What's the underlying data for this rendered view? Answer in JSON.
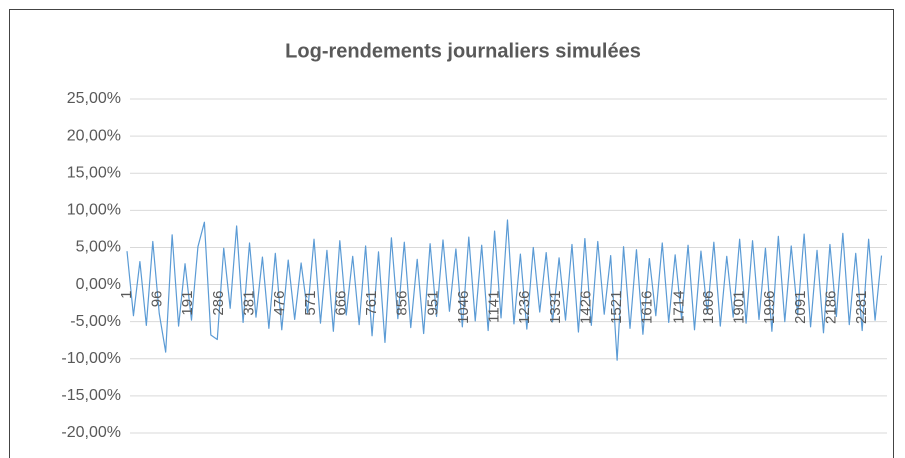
{
  "chart_data": {
    "type": "line",
    "title": "Log-rendements journaliers simulées",
    "xlim": [
      1,
      2358
    ],
    "xticks": [
      1,
      96,
      191,
      286,
      381,
      476,
      571,
      666,
      761,
      856,
      951,
      1046,
      1141,
      1236,
      1331,
      1426,
      1521,
      1616,
      1714,
      1806,
      1901,
      1996,
      2091,
      2186,
      2281
    ],
    "ylim": [
      -20,
      25
    ],
    "yticks": [
      {
        "value": 25,
        "label": "25,00%"
      },
      {
        "value": 20,
        "label": "20,00%"
      },
      {
        "value": 15,
        "label": "15,00%"
      },
      {
        "value": 10,
        "label": "10,00%"
      },
      {
        "value": 5,
        "label": "5,00%"
      },
      {
        "value": 0,
        "label": "0,00%"
      },
      {
        "value": -5,
        "label": "-5,00%"
      },
      {
        "value": -10,
        "label": "-10,00%"
      },
      {
        "value": -15,
        "label": "-15,00%"
      },
      {
        "value": -20,
        "label": "-20,00%"
      }
    ],
    "grid": true,
    "x": [
      1,
      21,
      41,
      61,
      81,
      101,
      121,
      141,
      161,
      181,
      201,
      221,
      241,
      261,
      281,
      301,
      321,
      341,
      361,
      381,
      401,
      421,
      441,
      461,
      481,
      501,
      521,
      541,
      561,
      581,
      601,
      621,
      641,
      661,
      681,
      701,
      721,
      741,
      761,
      781,
      801,
      821,
      841,
      861,
      881,
      901,
      921,
      941,
      961,
      981,
      1001,
      1021,
      1041,
      1061,
      1081,
      1101,
      1121,
      1141,
      1161,
      1181,
      1201,
      1221,
      1241,
      1261,
      1281,
      1301,
      1321,
      1341,
      1361,
      1381,
      1401,
      1421,
      1441,
      1461,
      1481,
      1501,
      1521,
      1541,
      1561,
      1581,
      1601,
      1621,
      1641,
      1661,
      1681,
      1701,
      1721,
      1741,
      1761,
      1781,
      1801,
      1821,
      1841,
      1861,
      1881,
      1901,
      1921,
      1941,
      1961,
      1981,
      2001,
      2021,
      2041,
      2061,
      2081,
      2101,
      2121,
      2141,
      2161,
      2181,
      2201,
      2221,
      2241,
      2261,
      2281,
      2301,
      2321,
      2341
    ],
    "series": [
      {
        "color": "#5b9bd5",
        "values": [
          4.5,
          -4.2,
          3.1,
          -5.5,
          5.8,
          -3.9,
          -9.1,
          6.7,
          -5.6,
          2.8,
          -4.8,
          5.1,
          8.4,
          -6.8,
          -7.4,
          4.9,
          -3.2,
          7.9,
          -5.1,
          5.6,
          -4.4,
          3.7,
          -5.9,
          4.2,
          -6.1,
          3.3,
          -4.7,
          2.9,
          -3.8,
          6.1,
          -5.2,
          4.6,
          -6.3,
          5.9,
          -4.1,
          3.8,
          -5.4,
          5.2,
          -6.9,
          4.4,
          -7.8,
          6.3,
          -4.6,
          5.7,
          -5.8,
          3.4,
          -6.6,
          5.5,
          -4.3,
          6.0,
          -3.6,
          4.8,
          -5.7,
          6.4,
          -4.9,
          5.3,
          -6.2,
          7.2,
          -4.5,
          8.7,
          -5.3,
          4.1,
          -6.0,
          5.0,
          -3.7,
          4.3,
          -5.0,
          3.6,
          -4.8,
          5.4,
          -6.4,
          6.2,
          -5.5,
          5.8,
          -4.0,
          3.9,
          -10.2,
          5.1,
          -5.9,
          4.7,
          -6.7,
          3.5,
          -4.2,
          5.6,
          -5.1,
          4.0,
          -4.6,
          5.3,
          -6.1,
          4.5,
          -3.9,
          5.7,
          -5.6,
          3.8,
          -4.4,
          6.1,
          -5.2,
          5.9,
          -4.7,
          4.9,
          -6.3,
          6.5,
          -5.0,
          5.2,
          -4.1,
          6.8,
          -5.7,
          4.6,
          -6.5,
          5.4,
          -4.3,
          6.9,
          -5.4,
          4.2,
          -6.2,
          6.1,
          -4.8,
          3.9
        ]
      }
    ]
  }
}
